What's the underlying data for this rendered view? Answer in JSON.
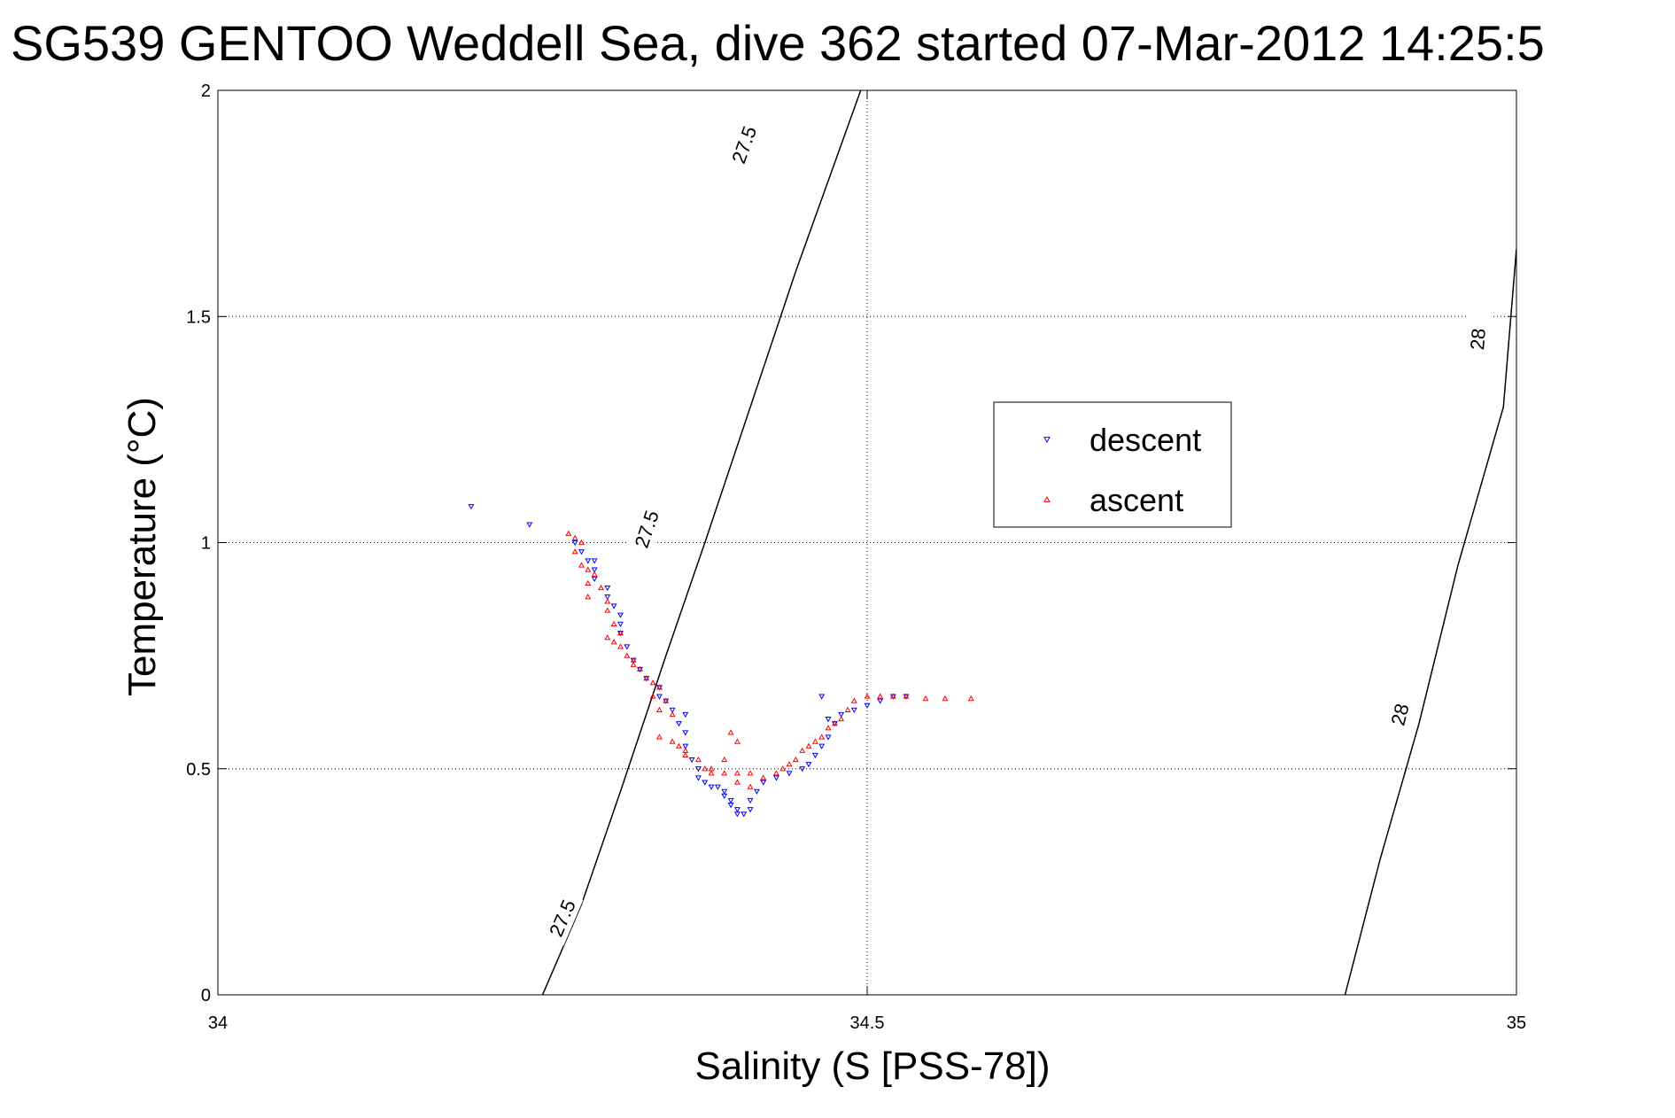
{
  "chart_data": {
    "type": "scatter",
    "title": "SG539 GENTOO Weddell Sea, dive 362 started 07-Mar-2012 14:25:5",
    "xlabel": "Salinity (S [PSS-78])",
    "ylabel": "Temperature (°C)",
    "xlim": [
      34,
      35
    ],
    "ylim": [
      0,
      2
    ],
    "xticks": [
      34,
      34.5,
      35
    ],
    "yticks": [
      0,
      0.5,
      1,
      1.5,
      2
    ],
    "xtick_labels": [
      "34",
      "34.5",
      "35"
    ],
    "ytick_labels": [
      "0",
      "0.5",
      "1",
      "1.5",
      "2"
    ],
    "grid": true,
    "legend_position": "inside-right",
    "isopycnals": [
      {
        "label": "27.5",
        "points": [
          [
            34.25,
            0.0
          ],
          [
            34.28,
            0.2
          ],
          [
            34.31,
            0.45
          ],
          [
            34.345,
            0.75
          ],
          [
            34.375,
            1.0
          ],
          [
            34.41,
            1.3
          ],
          [
            34.445,
            1.6
          ],
          [
            34.495,
            2.0
          ]
        ],
        "label_positions": [
          [
            34.265,
            0.17
          ],
          [
            34.33,
            1.03
          ],
          [
            34.405,
            1.88
          ]
        ]
      },
      {
        "label": "28",
        "points": [
          [
            34.868,
            0.0
          ],
          [
            34.895,
            0.3
          ],
          [
            34.925,
            0.6
          ],
          [
            34.955,
            0.95
          ],
          [
            34.99,
            1.3
          ],
          [
            35.0,
            1.65
          ]
        ],
        "label_positions": [
          [
            34.91,
            0.62
          ],
          [
            34.97,
            1.45
          ]
        ]
      }
    ],
    "series": [
      {
        "name": "descent",
        "color": "#0000ff",
        "marker": "triangle-down",
        "points": [
          [
            34.195,
            1.08
          ],
          [
            34.24,
            1.04
          ],
          [
            34.275,
            1.0
          ],
          [
            34.28,
            0.98
          ],
          [
            34.285,
            0.96
          ],
          [
            34.29,
            0.96
          ],
          [
            34.29,
            0.94
          ],
          [
            34.29,
            0.92
          ],
          [
            34.3,
            0.9
          ],
          [
            34.3,
            0.88
          ],
          [
            34.305,
            0.86
          ],
          [
            34.31,
            0.84
          ],
          [
            34.31,
            0.82
          ],
          [
            34.31,
            0.8
          ],
          [
            34.315,
            0.77
          ],
          [
            34.32,
            0.74
          ],
          [
            34.325,
            0.72
          ],
          [
            34.33,
            0.7
          ],
          [
            34.34,
            0.68
          ],
          [
            34.34,
            0.66
          ],
          [
            34.345,
            0.65
          ],
          [
            34.35,
            0.63
          ],
          [
            34.355,
            0.6
          ],
          [
            34.36,
            0.58
          ],
          [
            34.36,
            0.55
          ],
          [
            34.365,
            0.52
          ],
          [
            34.37,
            0.5
          ],
          [
            34.37,
            0.48
          ],
          [
            34.375,
            0.47
          ],
          [
            34.38,
            0.46
          ],
          [
            34.385,
            0.46
          ],
          [
            34.39,
            0.45
          ],
          [
            34.39,
            0.44
          ],
          [
            34.395,
            0.43
          ],
          [
            34.395,
            0.42
          ],
          [
            34.4,
            0.41
          ],
          [
            34.4,
            0.4
          ],
          [
            34.405,
            0.4
          ],
          [
            34.41,
            0.41
          ],
          [
            34.41,
            0.43
          ],
          [
            34.415,
            0.45
          ],
          [
            34.42,
            0.47
          ],
          [
            34.43,
            0.48
          ],
          [
            34.44,
            0.49
          ],
          [
            34.45,
            0.5
          ],
          [
            34.455,
            0.51
          ],
          [
            34.46,
            0.53
          ],
          [
            34.465,
            0.55
          ],
          [
            34.47,
            0.57
          ],
          [
            34.475,
            0.6
          ],
          [
            34.48,
            0.62
          ],
          [
            34.49,
            0.63
          ],
          [
            34.5,
            0.64
          ],
          [
            34.51,
            0.65
          ],
          [
            34.52,
            0.66
          ],
          [
            34.53,
            0.66
          ],
          [
            34.465,
            0.66
          ],
          [
            34.47,
            0.61
          ],
          [
            34.36,
            0.62
          ]
        ]
      },
      {
        "name": "ascent",
        "color": "#ff0000",
        "marker": "triangle-up",
        "points": [
          [
            34.27,
            1.02
          ],
          [
            34.275,
            1.01
          ],
          [
            34.28,
            1.0
          ],
          [
            34.275,
            0.98
          ],
          [
            34.28,
            0.95
          ],
          [
            34.285,
            0.94
          ],
          [
            34.29,
            0.93
          ],
          [
            34.285,
            0.91
          ],
          [
            34.295,
            0.9
          ],
          [
            34.3,
            0.87
          ],
          [
            34.3,
            0.85
          ],
          [
            34.305,
            0.82
          ],
          [
            34.31,
            0.8
          ],
          [
            34.3,
            0.79
          ],
          [
            34.305,
            0.78
          ],
          [
            34.31,
            0.77
          ],
          [
            34.315,
            0.75
          ],
          [
            34.32,
            0.74
          ],
          [
            34.32,
            0.73
          ],
          [
            34.325,
            0.72
          ],
          [
            34.33,
            0.7
          ],
          [
            34.335,
            0.69
          ],
          [
            34.34,
            0.68
          ],
          [
            34.335,
            0.66
          ],
          [
            34.345,
            0.65
          ],
          [
            34.34,
            0.63
          ],
          [
            34.35,
            0.62
          ],
          [
            34.34,
            0.57
          ],
          [
            34.35,
            0.56
          ],
          [
            34.355,
            0.55
          ],
          [
            34.36,
            0.54
          ],
          [
            34.37,
            0.52
          ],
          [
            34.375,
            0.5
          ],
          [
            34.38,
            0.49
          ],
          [
            34.39,
            0.49
          ],
          [
            34.4,
            0.49
          ],
          [
            34.41,
            0.49
          ],
          [
            34.42,
            0.48
          ],
          [
            34.43,
            0.49
          ],
          [
            34.435,
            0.5
          ],
          [
            34.44,
            0.51
          ],
          [
            34.445,
            0.52
          ],
          [
            34.45,
            0.54
          ],
          [
            34.455,
            0.55
          ],
          [
            34.46,
            0.56
          ],
          [
            34.465,
            0.57
          ],
          [
            34.47,
            0.59
          ],
          [
            34.475,
            0.6
          ],
          [
            34.48,
            0.61
          ],
          [
            34.485,
            0.63
          ],
          [
            34.49,
            0.65
          ],
          [
            34.5,
            0.66
          ],
          [
            34.51,
            0.66
          ],
          [
            34.52,
            0.66
          ],
          [
            34.53,
            0.66
          ],
          [
            34.545,
            0.655
          ],
          [
            34.56,
            0.655
          ],
          [
            34.395,
            0.58
          ],
          [
            34.4,
            0.56
          ],
          [
            34.39,
            0.52
          ],
          [
            34.36,
            0.53
          ],
          [
            34.38,
            0.5
          ],
          [
            34.4,
            0.47
          ],
          [
            34.41,
            0.46
          ],
          [
            34.58,
            0.655
          ],
          [
            34.285,
            0.88
          ]
        ]
      }
    ]
  }
}
